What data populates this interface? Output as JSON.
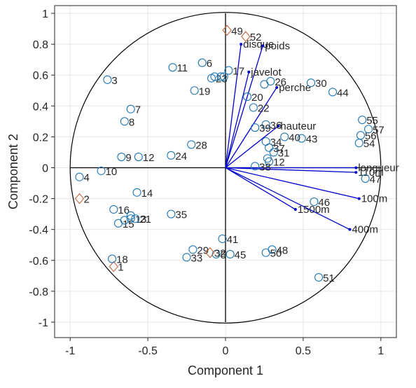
{
  "chart_data": {
    "type": "scatter",
    "title": "",
    "xlabel": "Component 1",
    "ylabel": "Component 2",
    "xlim": [
      -1.1,
      1.1
    ],
    "ylim": [
      -1.1,
      1.05
    ],
    "xticks": [
      -1,
      -0.5,
      0,
      0.5,
      1
    ],
    "xtick_labels": [
      "-1",
      "-0.5",
      "0",
      "0.5",
      "1"
    ],
    "yticks": [
      1,
      0.8,
      0.6,
      0.4,
      0.2,
      0,
      -0.2,
      -0.4,
      -0.6,
      -0.8,
      -1
    ],
    "ytick_labels": [
      "1",
      "0.8",
      "0.6",
      "0.4",
      "0.2",
      "0",
      "-0.2",
      "-0.4",
      "-0.6",
      "-0.8",
      "-1"
    ],
    "grid": true,
    "unit_circle": true,
    "colors": {
      "vectors": "#0000cc",
      "observations": "#1f77b4",
      "supplementary": "#c8643c",
      "circle": "#000000",
      "grid": "#e6e6e6"
    },
    "variables": [
      {
        "label": "disque",
        "x": 0.1,
        "y": 0.8
      },
      {
        "label": "poids",
        "x": 0.24,
        "y": 0.79
      },
      {
        "label": "javelot",
        "x": 0.15,
        "y": 0.62
      },
      {
        "label": "perche",
        "x": 0.33,
        "y": 0.52
      },
      {
        "label": "hauteur",
        "x": 0.34,
        "y": 0.27
      },
      {
        "label": "longueur",
        "x": 0.84,
        "y": 0.0
      },
      {
        "label": "110m",
        "x": 0.84,
        "y": -0.03
      },
      {
        "label": "100m",
        "x": 0.86,
        "y": -0.2
      },
      {
        "label": "1500m",
        "x": 0.45,
        "y": -0.27
      },
      {
        "label": "400m",
        "x": 0.8,
        "y": -0.4
      }
    ],
    "observations": [
      {
        "label": "1",
        "x": -0.72,
        "y": -0.64,
        "marker": "diamond"
      },
      {
        "label": "2",
        "x": -0.94,
        "y": -0.2,
        "marker": "diamond"
      },
      {
        "label": "3",
        "x": -0.76,
        "y": 0.57,
        "marker": "circle"
      },
      {
        "label": "4",
        "x": -0.94,
        "y": -0.06,
        "marker": "circle"
      },
      {
        "label": "5",
        "x": -0.06,
        "y": -0.56,
        "marker": "circle"
      },
      {
        "label": "6",
        "x": -0.15,
        "y": 0.68,
        "marker": "circle"
      },
      {
        "label": "7",
        "x": -0.61,
        "y": 0.38,
        "marker": "circle"
      },
      {
        "label": "8",
        "x": -0.65,
        "y": 0.3,
        "marker": "circle"
      },
      {
        "label": "9",
        "x": -0.67,
        "y": 0.07,
        "marker": "circle"
      },
      {
        "label": "10",
        "x": -0.8,
        "y": -0.02,
        "marker": "circle"
      },
      {
        "label": "11",
        "x": -0.34,
        "y": 0.65,
        "marker": "circle"
      },
      {
        "label": "12",
        "x": -0.56,
        "y": 0.07,
        "marker": "circle"
      },
      {
        "label": "12",
        "x": 0.28,
        "y": 0.04,
        "marker": "circle"
      },
      {
        "label": "13",
        "x": -0.61,
        "y": -0.33,
        "marker": "circle"
      },
      {
        "label": "14",
        "x": -0.57,
        "y": -0.16,
        "marker": "circle"
      },
      {
        "label": "15",
        "x": -0.69,
        "y": -0.36,
        "marker": "circle"
      },
      {
        "label": "16",
        "x": -0.72,
        "y": -0.27,
        "marker": "circle"
      },
      {
        "label": "17",
        "x": 0.02,
        "y": 0.63,
        "marker": "circle"
      },
      {
        "label": "18",
        "x": -0.73,
        "y": -0.59,
        "marker": "circle"
      },
      {
        "label": "19",
        "x": -0.2,
        "y": 0.5,
        "marker": "circle"
      },
      {
        "label": "20",
        "x": 0.14,
        "y": 0.46,
        "marker": "circle"
      },
      {
        "label": "21",
        "x": -0.58,
        "y": -0.33,
        "marker": "circle"
      },
      {
        "label": "22",
        "x": 0.18,
        "y": 0.39,
        "marker": "circle"
      },
      {
        "label": "23",
        "x": -0.09,
        "y": 0.58,
        "marker": "circle"
      },
      {
        "label": "24",
        "x": -0.35,
        "y": 0.08,
        "marker": "circle"
      },
      {
        "label": "26",
        "x": 0.29,
        "y": 0.56,
        "marker": "circle"
      },
      {
        "label": "28",
        "x": -0.22,
        "y": 0.15,
        "marker": "circle"
      },
      {
        "label": "29",
        "x": -0.21,
        "y": -0.53,
        "marker": "circle"
      },
      {
        "label": "30",
        "x": 0.55,
        "y": 0.55,
        "marker": "circle"
      },
      {
        "label": "31",
        "x": 0.31,
        "y": 0.1,
        "marker": "circle"
      },
      {
        "label": "32",
        "x": -0.1,
        "y": -0.55,
        "marker": "diamond"
      },
      {
        "label": "33",
        "x": -0.25,
        "y": -0.58,
        "marker": "circle"
      },
      {
        "label": "34",
        "x": 0.26,
        "y": 0.17,
        "marker": "circle"
      },
      {
        "label": "35",
        "x": -0.35,
        "y": -0.3,
        "marker": "circle"
      },
      {
        "label": "36",
        "x": 0.26,
        "y": 0.28,
        "marker": "circle"
      },
      {
        "label": "37",
        "x": 0.28,
        "y": 0.13,
        "marker": "circle"
      },
      {
        "label": "38",
        "x": 0.19,
        "y": 0.01,
        "marker": "circle"
      },
      {
        "label": "39",
        "x": 0.19,
        "y": 0.26,
        "marker": "circle"
      },
      {
        "label": "40",
        "x": 0.38,
        "y": 0.2,
        "marker": "circle"
      },
      {
        "label": "41",
        "x": -0.02,
        "y": -0.46,
        "marker": "circle"
      },
      {
        "label": "43",
        "x": 0.49,
        "y": 0.19,
        "marker": "circle"
      },
      {
        "label": "44",
        "x": 0.69,
        "y": 0.49,
        "marker": "circle"
      },
      {
        "label": "45",
        "x": 0.03,
        "y": -0.56,
        "marker": "circle"
      },
      {
        "label": "46",
        "x": 0.57,
        "y": -0.22,
        "marker": "circle"
      },
      {
        "label": "47",
        "x": 0.9,
        "y": -0.07,
        "marker": "circle"
      },
      {
        "label": "48",
        "x": 0.3,
        "y": -0.53,
        "marker": "circle"
      },
      {
        "label": "49",
        "x": 0.01,
        "y": 0.89,
        "marker": "diamond"
      },
      {
        "label": "50",
        "x": 0.26,
        "y": -0.55,
        "marker": "circle"
      },
      {
        "label": "51",
        "x": 0.6,
        "y": -0.71,
        "marker": "circle"
      },
      {
        "label": "52",
        "x": 0.13,
        "y": 0.85,
        "marker": "diamond"
      },
      {
        "label": "54",
        "x": 0.86,
        "y": 0.16,
        "marker": "circle"
      },
      {
        "label": "55",
        "x": 0.88,
        "y": 0.31,
        "marker": "circle"
      },
      {
        "label": "56",
        "x": 0.87,
        "y": 0.21,
        "marker": "circle"
      },
      {
        "label": "57",
        "x": 0.92,
        "y": 0.25,
        "marker": "circle"
      },
      {
        "label": "",
        "x": -0.07,
        "y": 0.59,
        "marker": "circle"
      },
      {
        "label": "",
        "x": -0.03,
        "y": 0.59,
        "marker": "circle"
      },
      {
        "label": "",
        "x": -0.01,
        "y": 0.59,
        "marker": "circle"
      },
      {
        "label": "",
        "x": 0.25,
        "y": 0.54,
        "marker": "circle"
      },
      {
        "label": "",
        "x": 0.27,
        "y": 0.06,
        "marker": "circle"
      },
      {
        "label": "",
        "x": -0.61,
        "y": -0.31,
        "marker": "circle"
      },
      {
        "label": "",
        "x": -0.65,
        "y": -0.34,
        "marker": "circle"
      }
    ]
  }
}
